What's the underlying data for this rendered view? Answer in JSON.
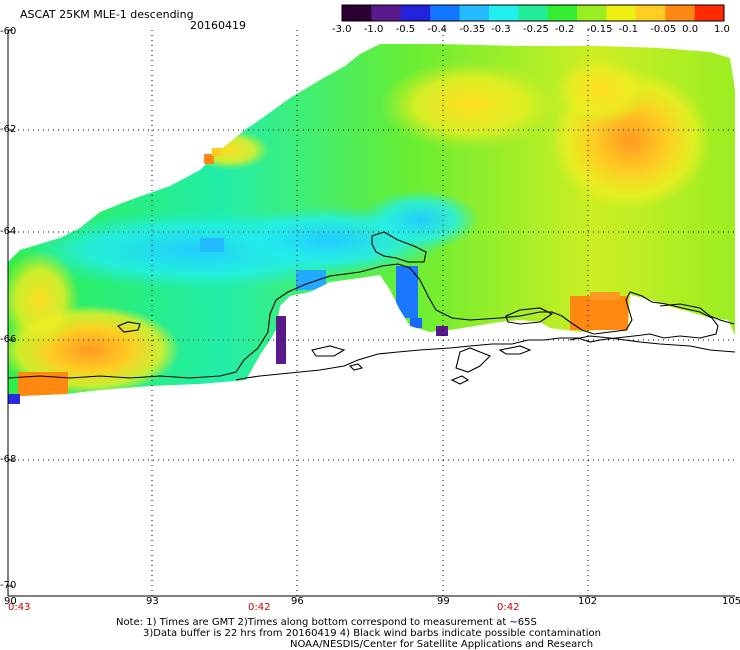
{
  "header": {
    "title": "ASCAT 25KM MLE-1 descending",
    "date": "20160419"
  },
  "colorbar": {
    "labels": [
      "-3.0",
      "-1.0",
      "-0.5",
      "-0.4",
      "-0.35",
      "-0.3",
      "-0.25",
      "-0.2",
      "-0.15",
      "-0.1",
      "-0.05",
      "0.0",
      "1.0"
    ],
    "colors": [
      "#2a0033",
      "#5a1a8c",
      "#2222dd",
      "#1177ff",
      "#22bbff",
      "#22eeee",
      "#22ee99",
      "#33ee33",
      "#99ee22",
      "#eeee11",
      "#ffcc22",
      "#ff8811",
      "#ff2a00"
    ]
  },
  "y_axis": {
    "labels": [
      "-60",
      "-62",
      "-64",
      "-66",
      "-68",
      "-70"
    ]
  },
  "x_axis": {
    "labels": [
      "90",
      "93",
      "96",
      "99",
      "102",
      "105"
    ]
  },
  "times": [
    "0:43",
    "0:42",
    "0:42"
  ],
  "notes": [
    "Note: 1) Times are GMT 2)Times along bottom correspond to measurement at ~65S",
    "3)Data buffer is 22 hrs from 20160419 4) Black wind barbs indicate possible contamination",
    "NOAA/NESDIS/Center for Satellite Applications and Research"
  ]
}
